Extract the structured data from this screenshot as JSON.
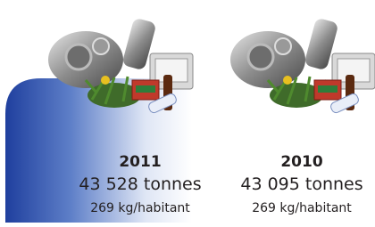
{
  "panels": [
    {
      "year": "2011",
      "amount": "43 528 tonnes",
      "per_capita": "269 kg/habitant"
    },
    {
      "year": "2010",
      "amount": "43 095 tonnes",
      "per_capita": "269 kg/habitant"
    }
  ]
}
